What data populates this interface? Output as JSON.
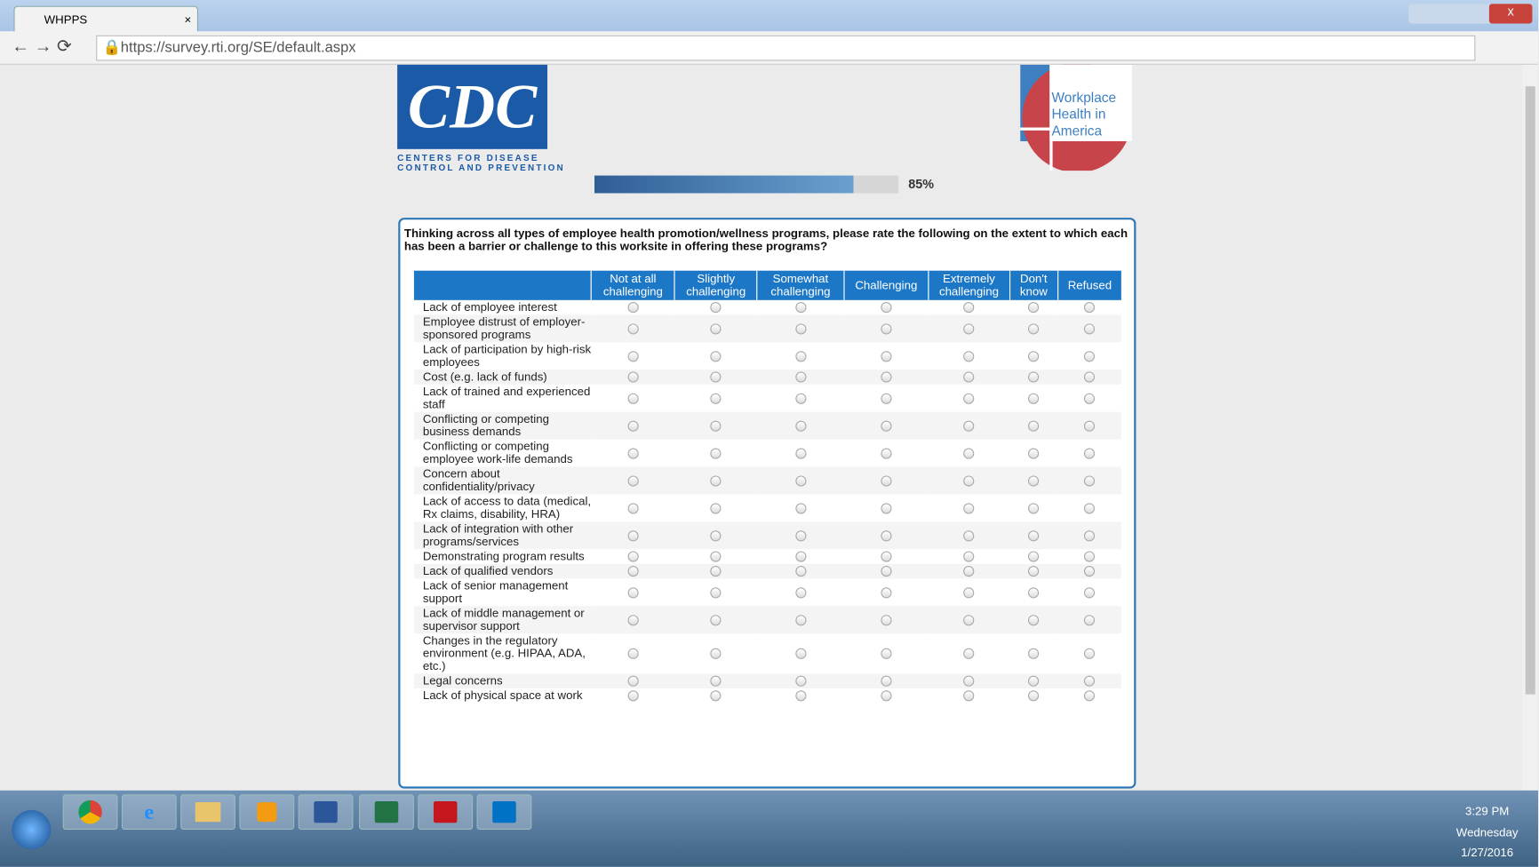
{
  "browser": {
    "tab_title": "WHPPS",
    "url": "https://survey.rti.org/SE/default.aspx"
  },
  "header": {
    "cdc_logo": "CDC",
    "cdc_line1": "CENTERS FOR DISEASE",
    "cdc_line2": "CONTROL AND PREVENTION",
    "whia_line1": "Workplace",
    "whia_line2": "Health in",
    "whia_line3": "America"
  },
  "progress": {
    "value": 85,
    "label": "85%"
  },
  "question": "Thinking across all types of employee health promotion/wellness programs, please rate the following on the extent to which each has been a barrier or challenge to this worksite in offering these programs?",
  "table": {
    "columns": [
      "Not at all challenging",
      "Slightly challenging",
      "Somewhat challenging",
      "Challenging",
      "Extremely challenging",
      "Don't know",
      "Refused"
    ],
    "rows": [
      "Lack of employee interest",
      "Employee distrust of employer-sponsored programs",
      "Lack of participation by high-risk employees",
      "Cost (e.g. lack of funds)",
      "Lack of trained and experienced staff",
      "Conflicting or competing business demands",
      "Conflicting or competing employee work-life demands",
      "Concern about confidentiality/privacy",
      "Lack of access to data (medical, Rx claims, disability, HRA)",
      "Lack of integration with other programs/services",
      "Demonstrating program results",
      "Lack of qualified vendors",
      "Lack of senior management support",
      "Lack of middle management or supervisor support",
      "Changes in the regulatory environment (e.g. HIPAA, ADA, etc.)",
      "Legal concerns",
      "Lack of physical space at work"
    ]
  },
  "taskbar": {
    "time": "3:29 PM",
    "day": "Wednesday",
    "date": "1/27/2016"
  }
}
